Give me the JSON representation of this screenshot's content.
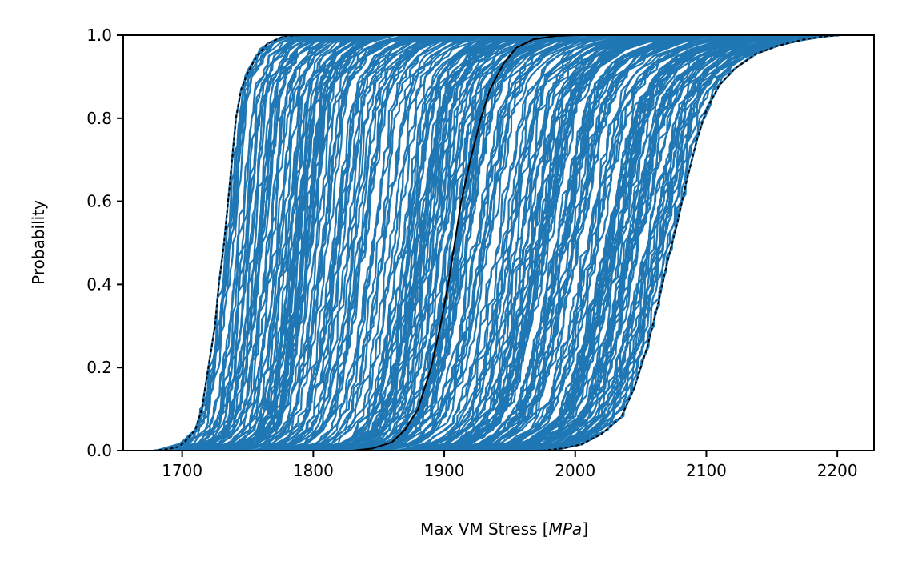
{
  "chart_data": {
    "type": "line",
    "title": "",
    "xlabel": "Max VM Stress [",
    "xlabel_unit": "MPa",
    "xlabel_close": "]",
    "ylabel": "Probability",
    "xlim": [
      1655,
      2228
    ],
    "ylim": [
      0,
      1
    ],
    "x_ticks": [
      1700,
      1800,
      1900,
      2000,
      2100,
      2200
    ],
    "x_tick_labels": [
      "1700",
      "1800",
      "1900",
      "2000",
      "2100",
      "2200"
    ],
    "y_ticks": [
      0.0,
      0.2,
      0.4,
      0.6,
      0.8,
      1.0
    ],
    "y_tick_labels": [
      "0.0",
      "0.2",
      "0.4",
      "0.6",
      "0.8",
      "1.0"
    ],
    "grid": false,
    "legend": false,
    "colors": {
      "ensemble": "#1f77b4",
      "median": "#000000",
      "bounds": "#000000"
    },
    "ensemble": {
      "description_count": 300,
      "lower_envelope_p5": 1700,
      "lower_envelope_p95": 1783,
      "upper_envelope_p5": 2002,
      "upper_envelope_p95": 2145
    },
    "series": [
      {
        "style": "solid",
        "points": [
          [
            1830,
            0.0
          ],
          [
            1845,
            0.005
          ],
          [
            1860,
            0.02
          ],
          [
            1870,
            0.05
          ],
          [
            1880,
            0.1
          ],
          [
            1890,
            0.2
          ],
          [
            1897,
            0.3
          ],
          [
            1903,
            0.4
          ],
          [
            1908,
            0.5
          ],
          [
            1913,
            0.6
          ],
          [
            1920,
            0.7
          ],
          [
            1928,
            0.8
          ],
          [
            1935,
            0.87
          ],
          [
            1945,
            0.93
          ],
          [
            1955,
            0.97
          ],
          [
            1968,
            0.99
          ],
          [
            1985,
            0.998
          ],
          [
            2000,
            1.0
          ]
        ]
      },
      {
        "style": "dashed",
        "points": [
          [
            1678,
            0.0
          ],
          [
            1690,
            0.004
          ],
          [
            1698,
            0.01
          ],
          [
            1703,
            0.025
          ],
          [
            1710,
            0.05
          ],
          [
            1715,
            0.1
          ],
          [
            1720,
            0.2
          ],
          [
            1725,
            0.3
          ],
          [
            1728,
            0.4
          ],
          [
            1732,
            0.5
          ],
          [
            1735,
            0.6
          ],
          [
            1738,
            0.7
          ],
          [
            1741,
            0.8
          ],
          [
            1745,
            0.87
          ],
          [
            1750,
            0.91
          ],
          [
            1757,
            0.95
          ],
          [
            1765,
            0.98
          ],
          [
            1778,
            0.998
          ],
          [
            1790,
            1.0
          ]
        ]
      },
      {
        "style": "dashed",
        "points": [
          [
            1975,
            0.0
          ],
          [
            1990,
            0.005
          ],
          [
            2005,
            0.015
          ],
          [
            2020,
            0.04
          ],
          [
            2035,
            0.08
          ],
          [
            2045,
            0.15
          ],
          [
            2055,
            0.25
          ],
          [
            2063,
            0.35
          ],
          [
            2070,
            0.45
          ],
          [
            2078,
            0.55
          ],
          [
            2085,
            0.65
          ],
          [
            2093,
            0.75
          ],
          [
            2100,
            0.82
          ],
          [
            2110,
            0.88
          ],
          [
            2122,
            0.92
          ],
          [
            2138,
            0.955
          ],
          [
            2155,
            0.975
          ],
          [
            2175,
            0.99
          ],
          [
            2190,
            0.997
          ],
          [
            2202,
            1.0
          ]
        ]
      }
    ]
  }
}
